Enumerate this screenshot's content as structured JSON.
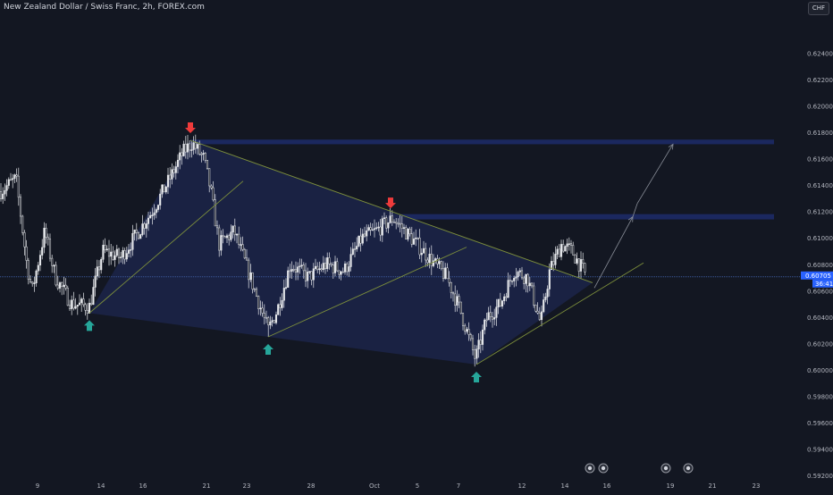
{
  "header": {
    "title": "New Zealand Dollar / Swiss Franc, 2h, FOREX.com",
    "currency": "CHF"
  },
  "price_tag": {
    "value": "0.60705",
    "countdown": "36:41"
  },
  "colors": {
    "background": "#131722",
    "candle": "#e6e8ec",
    "up_arrow": "#26a69a",
    "down_arrow": "#ef3b3b",
    "triangle_fill": "#1c2449",
    "zone_fill": "#1d2a66",
    "pattern_line": "#7d8f3c",
    "price_line": "#3d5a9e",
    "price_tag": "#2962ff"
  },
  "chart_data": {
    "type": "candlestick",
    "instrument": "New Zealand Dollar / Swiss Franc",
    "timeframe": "2h",
    "source": "FOREX.com",
    "ylim": [
      0.592,
      0.626
    ],
    "y_ticks": [
      "0.62400",
      "0.62200",
      "0.62000",
      "0.61800",
      "0.61600",
      "0.61400",
      "0.61200",
      "0.61000",
      "0.60800",
      "0.60600",
      "0.60400",
      "0.60200",
      "0.60000",
      "0.59800",
      "0.59600",
      "0.59400",
      "0.59200"
    ],
    "x_ticks": [
      "9",
      "14",
      "16",
      "21",
      "23",
      "28",
      "Oct",
      "5",
      "7",
      "12",
      "14",
      "16",
      "19",
      "21",
      "23"
    ],
    "current_price": 0.60705,
    "price_path": [
      [
        0,
        0.6135
      ],
      [
        18,
        0.6145
      ],
      [
        30,
        0.608
      ],
      [
        36,
        0.606
      ],
      [
        50,
        0.6105
      ],
      [
        62,
        0.607
      ],
      [
        80,
        0.605
      ],
      [
        100,
        0.6048
      ],
      [
        115,
        0.609
      ],
      [
        135,
        0.6085
      ],
      [
        150,
        0.61
      ],
      [
        170,
        0.612
      ],
      [
        190,
        0.6145
      ],
      [
        205,
        0.6165
      ],
      [
        215,
        0.6172
      ],
      [
        228,
        0.616
      ],
      [
        236,
        0.6135
      ],
      [
        245,
        0.6095
      ],
      [
        262,
        0.6105
      ],
      [
        280,
        0.607
      ],
      [
        300,
        0.603
      ],
      [
        310,
        0.6045
      ],
      [
        325,
        0.608
      ],
      [
        345,
        0.607
      ],
      [
        365,
        0.608
      ],
      [
        385,
        0.6075
      ],
      [
        405,
        0.61
      ],
      [
        420,
        0.6105
      ],
      [
        440,
        0.6115
      ],
      [
        460,
        0.61
      ],
      [
        480,
        0.6085
      ],
      [
        500,
        0.607
      ],
      [
        515,
        0.6045
      ],
      [
        532,
        0.6008
      ],
      [
        545,
        0.604
      ],
      [
        560,
        0.605
      ],
      [
        575,
        0.6075
      ],
      [
        590,
        0.607
      ],
      [
        605,
        0.6035
      ],
      [
        615,
        0.6075
      ],
      [
        628,
        0.6095
      ],
      [
        640,
        0.609
      ],
      [
        655,
        0.6072
      ]
    ],
    "highlighted_points": [
      {
        "type": "low",
        "x": 100,
        "price": 0.6043
      },
      {
        "type": "high",
        "x": 213,
        "price": 0.6174
      },
      {
        "type": "low",
        "x": 300,
        "price": 0.6025
      },
      {
        "type": "high",
        "x": 437,
        "price": 0.6117
      },
      {
        "type": "low",
        "x": 533,
        "price": 0.6004
      }
    ],
    "resistance_zones": [
      {
        "from_x": 213,
        "price_top": 0.61745,
        "price_bottom": 0.6171
      },
      {
        "from_x": 437,
        "price_top": 0.6118,
        "price_bottom": 0.6114
      }
    ],
    "triangle": [
      [
        100,
        0.6043
      ],
      [
        213,
        0.6174
      ],
      [
        663,
        0.6066
      ],
      [
        533,
        0.6004
      ]
    ],
    "trendlines": [
      {
        "from": [
          100,
          0.6043
        ],
        "to": [
          272,
          0.6143
        ]
      },
      {
        "from": [
          300,
          0.6025
        ],
        "to": [
          522,
          0.6093
        ]
      },
      {
        "from": [
          533,
          0.6004
        ],
        "to": [
          720,
          0.6081
        ]
      },
      {
        "from": [
          213,
          0.6174
        ],
        "to": [
          663,
          0.6066
        ]
      }
    ],
    "projection": [
      [
        665,
        0.6062
      ],
      [
        708,
        0.6116
      ],
      [
        713,
        0.6126
      ],
      [
        753,
        0.6171
      ]
    ],
    "event_markers": [
      660,
      675,
      745,
      770
    ]
  }
}
